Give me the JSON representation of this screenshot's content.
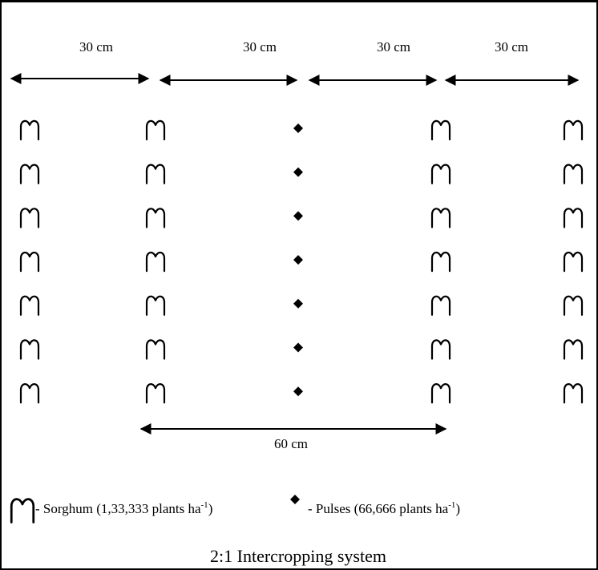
{
  "spacing_labels": [
    "30 cm",
    "30 cm",
    "30 cm",
    "30 cm"
  ],
  "bottom_label": "60 cm",
  "layout": {
    "columns": [
      "sorghum",
      "sorghum",
      "pulse",
      "sorghum",
      "sorghum"
    ],
    "rows_per_column": 7
  },
  "legend": {
    "sorghum": {
      "prefix": "- Sorghum (1,33,333 plants ha",
      "superscript": "-1",
      "suffix": ")"
    },
    "pulses": {
      "prefix": "- Pulses (66,666 plants ha",
      "superscript": "-1",
      "suffix": ")"
    }
  },
  "caption": "2:1 Intercropping system"
}
